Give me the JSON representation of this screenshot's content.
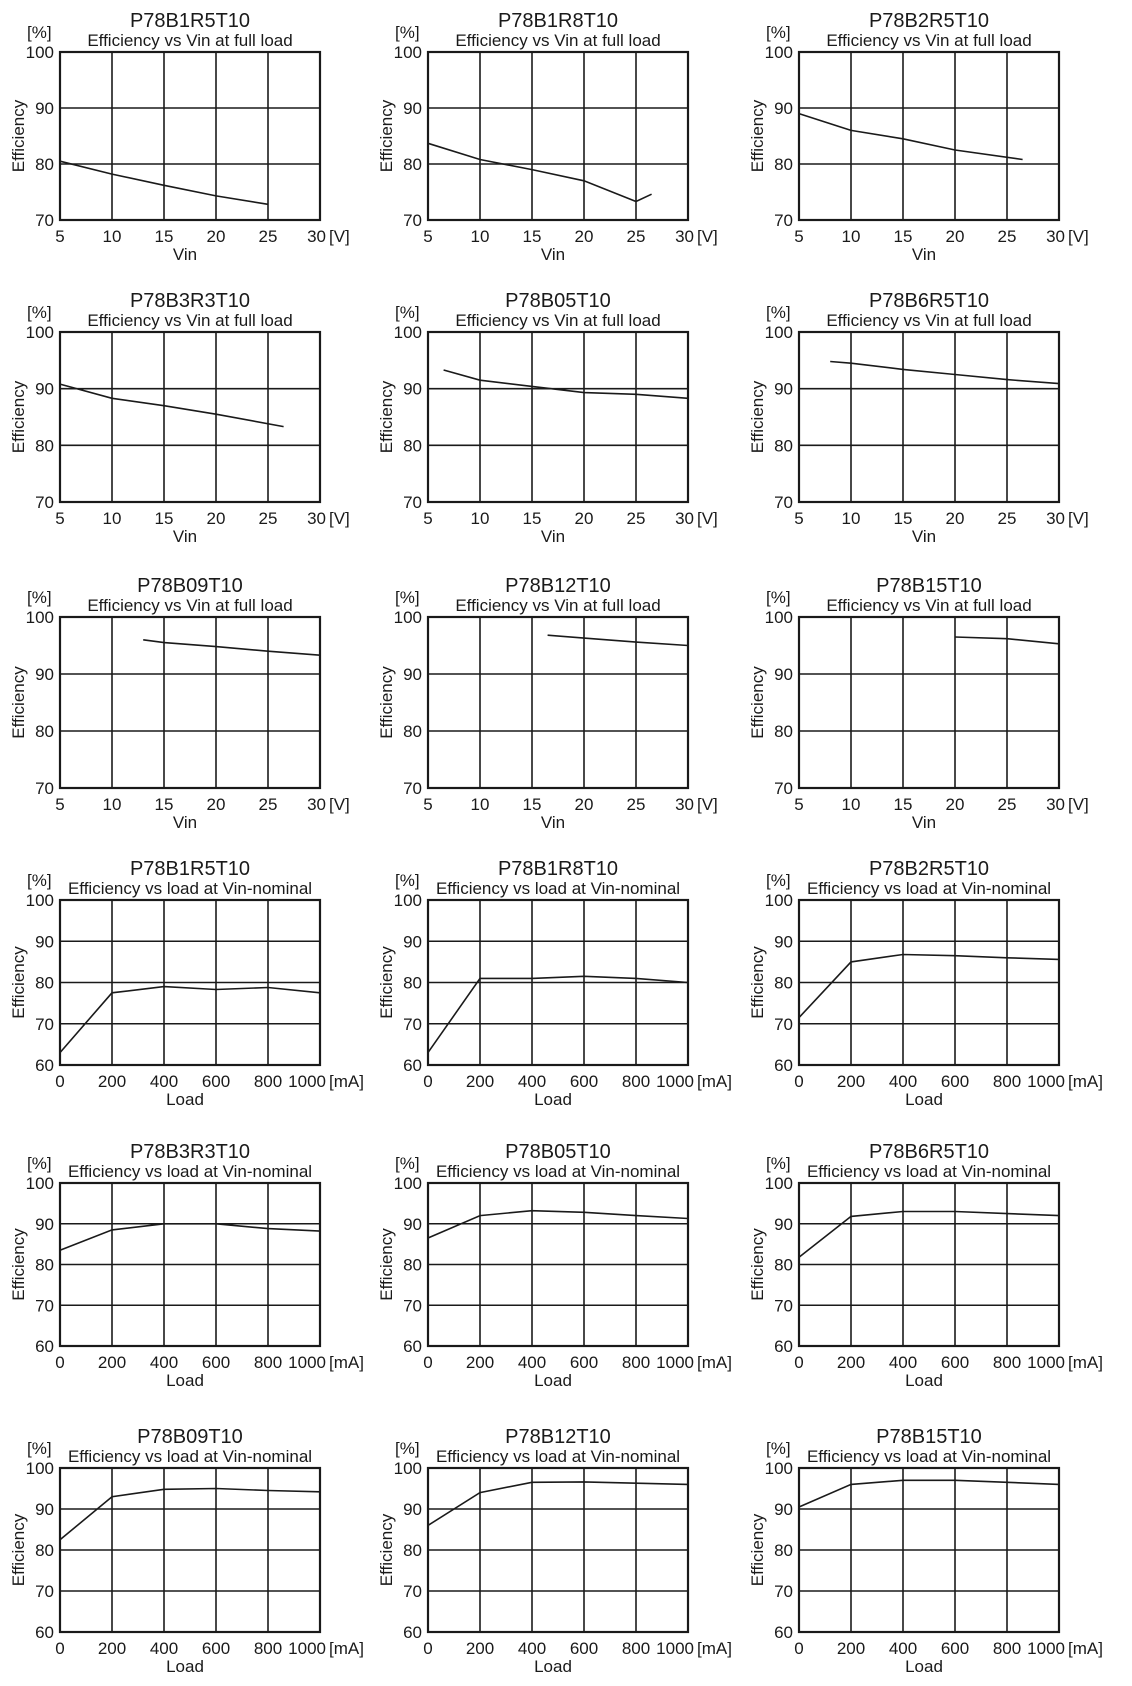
{
  "chart_data": [
    {
      "type": "line",
      "title": "P78B1R5T10",
      "subtitle": "Efficiency vs Vin at full load",
      "ylabel": "Efficiency",
      "y_unit": "[%]",
      "xlabel": "Vin",
      "x_unit": "[V]",
      "x_ticks": [
        5,
        10,
        15,
        20,
        25,
        30
      ],
      "y_ticks": [
        70,
        80,
        90,
        100
      ],
      "xlim": [
        5,
        30
      ],
      "ylim": [
        70,
        100
      ],
      "grid": true,
      "series": [
        {
          "x": [
            5,
            10,
            15,
            20,
            25
          ],
          "y": [
            80.5,
            78.2,
            76.2,
            74.3,
            72.8
          ]
        }
      ]
    },
    {
      "type": "line",
      "title": "P78B1R8T10",
      "subtitle": "Efficiency vs Vin at full load",
      "ylabel": "Efficiency",
      "y_unit": "[%]",
      "xlabel": "Vin",
      "x_unit": "[V]",
      "x_ticks": [
        5,
        10,
        15,
        20,
        25,
        30
      ],
      "y_ticks": [
        70,
        80,
        90,
        100
      ],
      "xlim": [
        5,
        30
      ],
      "ylim": [
        70,
        100
      ],
      "grid": true,
      "series": [
        {
          "x": [
            5,
            10,
            15,
            20,
            25,
            26.5
          ],
          "y": [
            83.7,
            80.8,
            79.0,
            77.0,
            73.3,
            74.6
          ]
        }
      ]
    },
    {
      "type": "line",
      "title": "P78B2R5T10",
      "subtitle": "Efficiency vs Vin at full load",
      "ylabel": "Efficiency",
      "y_unit": "[%]",
      "xlabel": "Vin",
      "x_unit": "[V]",
      "x_ticks": [
        5,
        10,
        15,
        20,
        25,
        30
      ],
      "y_ticks": [
        70,
        80,
        90,
        100
      ],
      "xlim": [
        5,
        30
      ],
      "ylim": [
        70,
        100
      ],
      "grid": true,
      "series": [
        {
          "x": [
            5,
            10,
            15,
            20,
            26.5
          ],
          "y": [
            89.0,
            86.0,
            84.5,
            82.5,
            80.8
          ]
        }
      ]
    },
    {
      "type": "line",
      "title": "P78B3R3T10",
      "subtitle": "Efficiency vs Vin at full load",
      "ylabel": "Efficiency",
      "y_unit": "[%]",
      "xlabel": "Vin",
      "x_unit": "[V]",
      "x_ticks": [
        5,
        10,
        15,
        20,
        25,
        30
      ],
      "y_ticks": [
        70,
        80,
        90,
        100
      ],
      "xlim": [
        5,
        30
      ],
      "ylim": [
        70,
        100
      ],
      "grid": true,
      "series": [
        {
          "x": [
            5,
            10,
            15,
            20,
            26.5
          ],
          "y": [
            90.8,
            88.3,
            87.0,
            85.5,
            83.3
          ]
        }
      ]
    },
    {
      "type": "line",
      "title": "P78B05T10",
      "subtitle": "Efficiency vs Vin at full load",
      "ylabel": "Efficiency",
      "y_unit": "[%]",
      "xlabel": "Vin",
      "x_unit": "[V]",
      "x_ticks": [
        5,
        10,
        15,
        20,
        25,
        30
      ],
      "y_ticks": [
        70,
        80,
        90,
        100
      ],
      "xlim": [
        5,
        30
      ],
      "ylim": [
        70,
        100
      ],
      "grid": true,
      "series": [
        {
          "x": [
            6.5,
            10,
            15,
            20,
            25,
            30
          ],
          "y": [
            93.3,
            91.5,
            90.4,
            89.3,
            89.0,
            88.3
          ]
        }
      ]
    },
    {
      "type": "line",
      "title": "P78B6R5T10",
      "subtitle": "Efficiency vs Vin at full load",
      "ylabel": "Efficiency",
      "y_unit": "[%]",
      "xlabel": "Vin",
      "x_unit": "[V]",
      "x_ticks": [
        5,
        10,
        15,
        20,
        25,
        30
      ],
      "y_ticks": [
        70,
        80,
        90,
        100
      ],
      "xlim": [
        5,
        30
      ],
      "ylim": [
        70,
        100
      ],
      "grid": true,
      "series": [
        {
          "x": [
            8,
            10,
            15,
            20,
            25,
            30
          ],
          "y": [
            94.8,
            94.5,
            93.4,
            92.5,
            91.6,
            90.9
          ]
        }
      ]
    },
    {
      "type": "line",
      "title": "P78B09T10",
      "subtitle": "Efficiency vs Vin at full load",
      "ylabel": "Efficiency",
      "y_unit": "[%]",
      "xlabel": "Vin",
      "x_unit": "[V]",
      "x_ticks": [
        5,
        10,
        15,
        20,
        25,
        30
      ],
      "y_ticks": [
        70,
        80,
        90,
        100
      ],
      "xlim": [
        5,
        30
      ],
      "ylim": [
        70,
        100
      ],
      "grid": true,
      "series": [
        {
          "x": [
            13,
            15,
            20,
            25,
            30
          ],
          "y": [
            96.0,
            95.5,
            94.8,
            94.0,
            93.3
          ]
        }
      ]
    },
    {
      "type": "line",
      "title": "P78B12T10",
      "subtitle": "Efficiency vs Vin at full load",
      "ylabel": "Efficiency",
      "y_unit": "[%]",
      "xlabel": "Vin",
      "x_unit": "[V]",
      "x_ticks": [
        5,
        10,
        15,
        20,
        25,
        30
      ],
      "y_ticks": [
        70,
        80,
        90,
        100
      ],
      "xlim": [
        5,
        30
      ],
      "ylim": [
        70,
        100
      ],
      "grid": true,
      "series": [
        {
          "x": [
            16.5,
            20,
            25,
            30
          ],
          "y": [
            96.8,
            96.3,
            95.6,
            95.0
          ]
        }
      ]
    },
    {
      "type": "line",
      "title": "P78B15T10",
      "subtitle": "Efficiency vs Vin at full load",
      "ylabel": "Efficiency",
      "y_unit": "[%]",
      "xlabel": "Vin",
      "x_unit": "[V]",
      "x_ticks": [
        5,
        10,
        15,
        20,
        25,
        30
      ],
      "y_ticks": [
        70,
        80,
        90,
        100
      ],
      "xlim": [
        5,
        30
      ],
      "ylim": [
        70,
        100
      ],
      "grid": true,
      "series": [
        {
          "x": [
            20,
            25,
            30
          ],
          "y": [
            96.5,
            96.2,
            95.3
          ]
        }
      ]
    },
    {
      "type": "line",
      "title": "P78B1R5T10",
      "subtitle": "Efficiency vs load at Vin-nominal",
      "ylabel": "Efficiency",
      "y_unit": "[%]",
      "xlabel": "Load",
      "x_unit": "[mA]",
      "x_ticks": [
        0,
        200,
        400,
        600,
        800,
        1000
      ],
      "y_ticks": [
        60,
        70,
        80,
        90,
        100
      ],
      "xlim": [
        0,
        1000
      ],
      "ylim": [
        60,
        100
      ],
      "grid": true,
      "series": [
        {
          "x": [
            0,
            200,
            400,
            600,
            800,
            1000
          ],
          "y": [
            63.0,
            77.5,
            79.0,
            78.3,
            78.8,
            77.5
          ]
        }
      ]
    },
    {
      "type": "line",
      "title": "P78B1R8T10",
      "subtitle": "Efficiency vs load at Vin-nominal",
      "ylabel": "Efficiency",
      "y_unit": "[%]",
      "xlabel": "Load",
      "x_unit": "[mA]",
      "x_ticks": [
        0,
        200,
        400,
        600,
        800,
        1000
      ],
      "y_ticks": [
        60,
        70,
        80,
        90,
        100
      ],
      "xlim": [
        0,
        1000
      ],
      "ylim": [
        60,
        100
      ],
      "grid": true,
      "series": [
        {
          "x": [
            0,
            200,
            400,
            600,
            800,
            1000
          ],
          "y": [
            63.0,
            81.0,
            81.0,
            81.5,
            81.0,
            80.0
          ]
        }
      ]
    },
    {
      "type": "line",
      "title": "P78B2R5T10",
      "subtitle": "Efficiency vs load at Vin-nominal",
      "ylabel": "Efficiency",
      "y_unit": "[%]",
      "xlabel": "Load",
      "x_unit": "[mA]",
      "x_ticks": [
        0,
        200,
        400,
        600,
        800,
        1000
      ],
      "y_ticks": [
        60,
        70,
        80,
        90,
        100
      ],
      "xlim": [
        0,
        1000
      ],
      "ylim": [
        60,
        100
      ],
      "grid": true,
      "series": [
        {
          "x": [
            0,
            200,
            400,
            600,
            800,
            1000
          ],
          "y": [
            71.5,
            85.0,
            86.8,
            86.5,
            86.0,
            85.6
          ]
        }
      ]
    },
    {
      "type": "line",
      "title": "P78B3R3T10",
      "subtitle": "Efficiency vs load at Vin-nominal",
      "ylabel": "Efficiency",
      "y_unit": "[%]",
      "xlabel": "Load",
      "x_unit": "[mA]",
      "x_ticks": [
        0,
        200,
        400,
        600,
        800,
        1000
      ],
      "y_ticks": [
        60,
        70,
        80,
        90,
        100
      ],
      "xlim": [
        0,
        1000
      ],
      "ylim": [
        60,
        100
      ],
      "grid": true,
      "series": [
        {
          "x": [
            0,
            200,
            400,
            600,
            800,
            1000
          ],
          "y": [
            83.5,
            88.5,
            90.0,
            90.0,
            88.8,
            88.2
          ]
        }
      ]
    },
    {
      "type": "line",
      "title": "P78B05T10",
      "subtitle": "Efficiency vs load at Vin-nominal",
      "ylabel": "Efficiency",
      "y_unit": "[%]",
      "xlabel": "Load",
      "x_unit": "[mA]",
      "x_ticks": [
        0,
        200,
        400,
        600,
        800,
        1000
      ],
      "y_ticks": [
        60,
        70,
        80,
        90,
        100
      ],
      "xlim": [
        0,
        1000
      ],
      "ylim": [
        60,
        100
      ],
      "grid": true,
      "series": [
        {
          "x": [
            0,
            200,
            400,
            600,
            800,
            1000
          ],
          "y": [
            86.5,
            92.0,
            93.2,
            92.8,
            92.0,
            91.3
          ]
        }
      ]
    },
    {
      "type": "line",
      "title": "P78B6R5T10",
      "subtitle": "Efficiency vs load at Vin-nominal",
      "ylabel": "Efficiency",
      "y_unit": "[%]",
      "xlabel": "Load",
      "x_unit": "[mA]",
      "x_ticks": [
        0,
        200,
        400,
        600,
        800,
        1000
      ],
      "y_ticks": [
        60,
        70,
        80,
        90,
        100
      ],
      "xlim": [
        0,
        1000
      ],
      "ylim": [
        60,
        100
      ],
      "grid": true,
      "series": [
        {
          "x": [
            0,
            200,
            400,
            600,
            800,
            1000
          ],
          "y": [
            81.8,
            91.8,
            93.0,
            93.0,
            92.5,
            92.0
          ]
        }
      ]
    },
    {
      "type": "line",
      "title": "P78B09T10",
      "subtitle": "Efficiency vs load at Vin-nominal",
      "ylabel": "Efficiency",
      "y_unit": "[%]",
      "xlabel": "Load",
      "x_unit": "[mA]",
      "x_ticks": [
        0,
        200,
        400,
        600,
        800,
        1000
      ],
      "y_ticks": [
        60,
        70,
        80,
        90,
        100
      ],
      "xlim": [
        0,
        1000
      ],
      "ylim": [
        60,
        100
      ],
      "grid": true,
      "series": [
        {
          "x": [
            0,
            200,
            400,
            600,
            800,
            1000
          ],
          "y": [
            82.5,
            93.0,
            94.8,
            95.0,
            94.5,
            94.2
          ]
        }
      ]
    },
    {
      "type": "line",
      "title": "P78B12T10",
      "subtitle": "Efficiency vs load at Vin-nominal",
      "ylabel": "Efficiency",
      "y_unit": "[%]",
      "xlabel": "Load",
      "x_unit": "[mA]",
      "x_ticks": [
        0,
        200,
        400,
        600,
        800,
        1000
      ],
      "y_ticks": [
        60,
        70,
        80,
        90,
        100
      ],
      "xlim": [
        0,
        1000
      ],
      "ylim": [
        60,
        100
      ],
      "grid": true,
      "series": [
        {
          "x": [
            0,
            200,
            400,
            600,
            800,
            1000
          ],
          "y": [
            86.0,
            94.0,
            96.5,
            96.6,
            96.3,
            96.0
          ]
        }
      ]
    },
    {
      "type": "line",
      "title": "P78B15T10",
      "subtitle": "Efficiency vs load at Vin-nominal",
      "ylabel": "Efficiency",
      "y_unit": "[%]",
      "xlabel": "Load",
      "x_unit": "[mA]",
      "x_ticks": [
        0,
        200,
        400,
        600,
        800,
        1000
      ],
      "y_ticks": [
        60,
        70,
        80,
        90,
        100
      ],
      "xlim": [
        0,
        1000
      ],
      "ylim": [
        60,
        100
      ],
      "grid": true,
      "series": [
        {
          "x": [
            0,
            200,
            400,
            600,
            800,
            1000
          ],
          "y": [
            90.5,
            96.0,
            97.0,
            97.0,
            96.5,
            96.0
          ]
        }
      ]
    }
  ]
}
